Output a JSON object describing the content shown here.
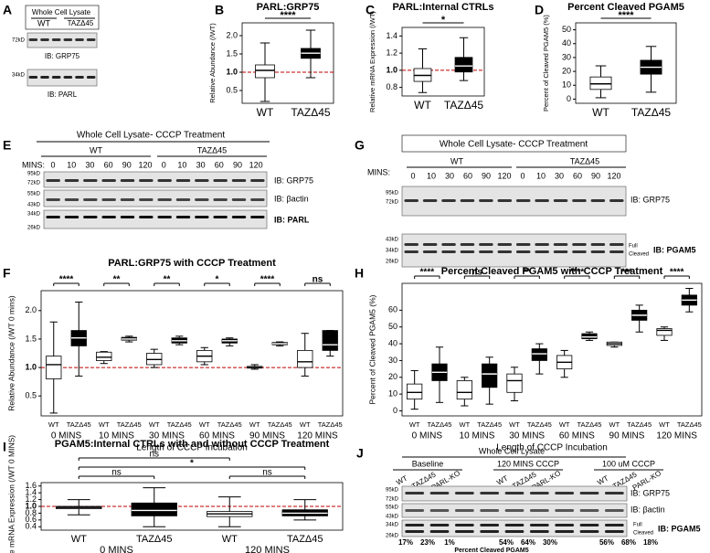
{
  "panel_labels": [
    "A",
    "B",
    "C",
    "D",
    "E",
    "F",
    "G",
    "H",
    "I",
    "J"
  ],
  "blots": {
    "A": {
      "title": "Whole Cell Lysate",
      "groups": [
        "WT",
        "TAZΔ45"
      ],
      "markers": [
        "72kD",
        "34kD"
      ],
      "ib": [
        "IB: GRP75",
        "IB: PARL"
      ]
    },
    "E": {
      "title": "Whole Cell Lysate- CCCP Treatment",
      "groups": [
        "WT",
        "TAZΔ45"
      ],
      "time_label": "MINS:",
      "times": [
        0,
        10,
        30,
        60,
        90,
        120,
        0,
        10,
        30,
        60,
        90,
        120
      ],
      "markers": [
        "95kD",
        "72kD",
        "55kD",
        "43kD",
        "34kD",
        "26kD"
      ],
      "ib": [
        "IB: GRP75",
        "IB: βactin",
        "IB: PARL"
      ]
    },
    "G": {
      "title": "Whole Cell Lysate- CCCP Treatment",
      "groups": [
        "WT",
        "TAZΔ45"
      ],
      "time_label": "MINS:",
      "times": [
        0,
        10,
        30,
        60,
        90,
        120,
        0,
        10,
        30,
        60,
        90,
        120
      ],
      "markers": [
        "95kD",
        "72kD",
        "43kD",
        "34kD",
        "26kD"
      ],
      "ib": [
        "IB: GRP75",
        "IB: PGAM5"
      ],
      "band_labels": [
        "Full",
        "Cleaved"
      ]
    },
    "J": {
      "title": "Whole Cell Lysate",
      "conditions": [
        "Baseline",
        "120 MINS CCCP",
        "100 uM CCCP"
      ],
      "lanes": [
        "WT",
        "TAZΔ45",
        "PARL-KO"
      ],
      "markers": [
        "95kD",
        "72kD",
        "55kD",
        "43kD",
        "34kD",
        "26kD"
      ],
      "ib": [
        "IB: GRP75",
        "IB: βactin",
        "IB: PGAM5"
      ],
      "band_labels": [
        "Full",
        "Cleaved"
      ],
      "percents": [
        "17%",
        "23%",
        "1%",
        "54%",
        "64%",
        "30%",
        "56%",
        "68%",
        "18%"
      ],
      "percent_label": "Percent Cleaved PGAM5"
    }
  },
  "chart_data": [
    {
      "type": "box",
      "title": "PARL:GRP75",
      "ylabel": "Relative Abundance (/WT)",
      "categories": [
        "WT",
        "TAZΔ45"
      ],
      "colors": [
        "#ffffff",
        "#000000"
      ],
      "values": [
        [
          0.2,
          0.85,
          1.05,
          1.2,
          1.8
        ],
        [
          0.85,
          1.38,
          1.52,
          1.65,
          2.15
        ]
      ],
      "significance": "****",
      "ylim": [
        0.15,
        2.35
      ],
      "yticks": [
        0.5,
        {
          "value": 1,
          "label": "1.0"
        },
        1.5,
        {
          "value": 2,
          "label": "2.0"
        }
      ],
      "ref_line": 1
    },
    {
      "type": "box",
      "title": "PARL:Internal CTRLs",
      "ylabel": "Relative mRNA Expression (/WT)",
      "categories": [
        "WT",
        "TAZΔ45"
      ],
      "colors": [
        "#ffffff",
        "#000000"
      ],
      "values": [
        [
          0.74,
          0.87,
          0.94,
          1.02,
          1.25
        ],
        [
          0.88,
          0.98,
          1.05,
          1.15,
          1.38
        ]
      ],
      "significance": "*",
      "ylim": [
        0.7,
        1.5
      ],
      "yticks": [
        0.8,
        {
          "value": 1,
          "label": "1.0"
        },
        1.2,
        1.4
      ],
      "ref_line": 1
    },
    {
      "type": "box",
      "title": "Percent Cleaved PGAM5",
      "ylabel": "Percent of Cleaved PGAM5 (%)",
      "categories": [
        "WT",
        "TAZΔ45"
      ],
      "colors": [
        "#ffffff",
        "#000000"
      ],
      "values": [
        [
          1,
          7,
          11,
          16,
          24
        ],
        [
          5,
          18,
          23,
          28,
          38
        ]
      ],
      "significance": "****",
      "ylim": [
        -3,
        55
      ],
      "yticks": [
        0,
        10,
        20,
        30,
        40,
        50
      ]
    },
    {
      "type": "grouped_box",
      "title": "PARL:GRP75 with CCCP Treatment",
      "ylabel": "Relative Abundance (/WT 0 mins)",
      "xlabel": "Length of CCCP Incubation",
      "groups": [
        "0 MINS",
        "10 MINS",
        "30 MINS",
        "60 MINS",
        "90 MINS",
        "120 MINS"
      ],
      "categories": [
        "WT",
        "TAZΔ45"
      ],
      "colors": [
        "#ffffff",
        "#000000"
      ],
      "values": [
        [
          [
            0.2,
            0.8,
            1.05,
            1.2,
            1.8
          ],
          [
            0.85,
            1.38,
            1.52,
            1.65,
            2.15
          ]
        ],
        [
          [
            1.07,
            1.12,
            1.18,
            1.27,
            1.28
          ],
          [
            1.45,
            1.48,
            1.5,
            1.53,
            1.55
          ]
        ],
        [
          [
            1.0,
            1.05,
            1.14,
            1.25,
            1.32
          ],
          [
            1.4,
            1.43,
            1.47,
            1.52,
            1.55
          ]
        ],
        [
          [
            1.05,
            1.1,
            1.2,
            1.3,
            1.35
          ],
          [
            1.38,
            1.43,
            1.47,
            1.5,
            1.52
          ]
        ],
        [
          [
            0.97,
            0.99,
            1.0,
            1.02,
            1.05
          ],
          [
            1.38,
            1.4,
            1.42,
            1.44,
            1.45
          ]
        ],
        [
          [
            0.85,
            1.0,
            1.1,
            1.3,
            1.6
          ],
          [
            1.2,
            1.3,
            1.4,
            1.65,
            1.65
          ]
        ]
      ],
      "significance": [
        "****",
        "**",
        "**",
        "*",
        "****",
        "ns"
      ],
      "ylim": [
        0.15,
        2.35
      ],
      "yticks": [
        0.5,
        {
          "value": 1,
          "label": "1.0"
        },
        1.5,
        {
          "value": 2,
          "label": "2.0"
        }
      ],
      "ref_line": 1
    },
    {
      "type": "grouped_box",
      "title": "Percent Cleaved PGAM5 with CCCP Treatment",
      "ylabel": "Percent of Cleaved PGAM5 (%)",
      "xlabel": "Length of CCCP Incubation",
      "groups": [
        "0 MINS",
        "10 MINS",
        "30 MINS",
        "60 MINS",
        "90 MINS",
        "120 MINS"
      ],
      "categories": [
        "WT",
        "TAZΔ45"
      ],
      "colors": [
        "#ffffff",
        "#000000"
      ],
      "values": [
        [
          [
            1,
            7,
            11,
            16,
            24
          ],
          [
            5,
            18,
            23,
            28,
            38
          ]
        ],
        [
          [
            3,
            7,
            11,
            18,
            20
          ],
          [
            4,
            14,
            22,
            28,
            32
          ]
        ],
        [
          [
            6,
            11,
            18,
            22,
            26
          ],
          [
            22,
            30,
            34,
            37,
            40
          ]
        ],
        [
          [
            20,
            25,
            29,
            33,
            36
          ],
          [
            42,
            43,
            44,
            46,
            47
          ]
        ],
        [
          [
            38,
            39,
            40,
            41,
            41
          ],
          [
            47,
            54,
            57,
            60,
            63
          ]
        ],
        [
          [
            42,
            45,
            48,
            49,
            50
          ],
          [
            59,
            63,
            66,
            69,
            73
          ]
        ]
      ],
      "significance": [
        "****",
        "ns",
        "**",
        "****",
        "***",
        "****"
      ],
      "ylim": [
        -3,
        76
      ],
      "yticks": [
        0,
        10,
        20,
        30,
        40,
        50,
        60
      ]
    },
    {
      "type": "grouped_box",
      "title": "PGAM5:Internal CTRLs with and without CCCP Treatment",
      "ylabel": "Relative mRNA Expression (/WT 0 MINS)",
      "groups": [
        "0 MINS",
        "120 MINS"
      ],
      "categories": [
        "WT",
        "TAZΔ45"
      ],
      "colors": [
        "#ffffff",
        "#000000"
      ],
      "values": [
        [
          [
            0.75,
            0.93,
            0.97,
            1.0,
            1.2
          ],
          [
            0.4,
            0.72,
            0.88,
            1.1,
            1.55
          ]
        ],
        [
          [
            0.4,
            0.7,
            0.78,
            0.85,
            1.28
          ],
          [
            0.6,
            0.72,
            0.8,
            0.9,
            1.2
          ]
        ]
      ],
      "comparisons": [
        "ns",
        "*",
        "ns",
        "ns"
      ],
      "ylim": [
        0.3,
        1.7
      ],
      "yticks": [
        0.4,
        0.6,
        0.8,
        {
          "value": 1,
          "label": "1.0"
        },
        1.2,
        1.4,
        1.6
      ],
      "ref_line": 1
    }
  ]
}
